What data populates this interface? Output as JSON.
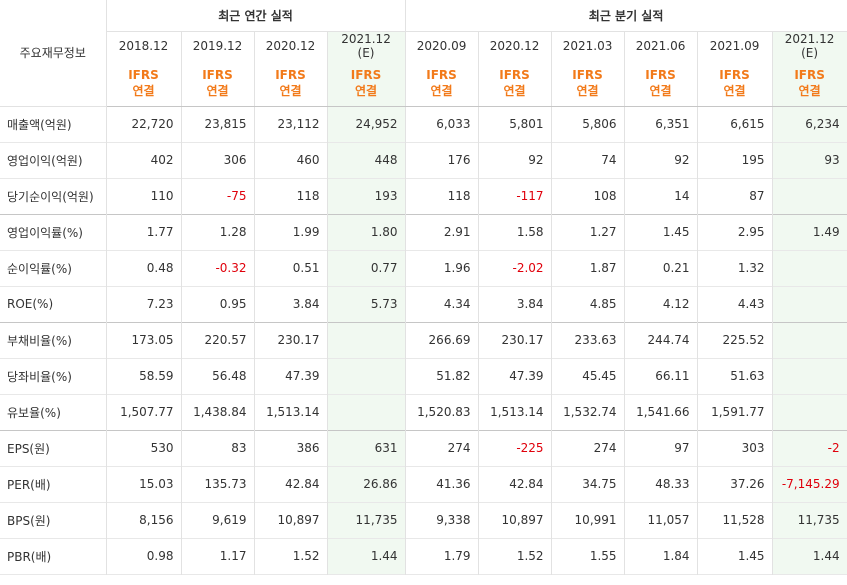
{
  "header": {
    "corner_label": "주요재무정보",
    "annual_group": "최근 연간 실적",
    "quarter_group": "최근 분기 실적",
    "periods": [
      {
        "label": "2018.12",
        "estimate": "",
        "basis": [
          "IFRS",
          "연결"
        ]
      },
      {
        "label": "2019.12",
        "estimate": "",
        "basis": [
          "IFRS",
          "연결"
        ]
      },
      {
        "label": "2020.12",
        "estimate": "",
        "basis": [
          "IFRS",
          "연결"
        ]
      },
      {
        "label": "2021.12",
        "estimate": "(E)",
        "basis": [
          "IFRS",
          "연결"
        ]
      },
      {
        "label": "2020.09",
        "estimate": "",
        "basis": [
          "IFRS",
          "연결"
        ]
      },
      {
        "label": "2020.12",
        "estimate": "",
        "basis": [
          "IFRS",
          "연결"
        ]
      },
      {
        "label": "2021.03",
        "estimate": "",
        "basis": [
          "IFRS",
          "연결"
        ]
      },
      {
        "label": "2021.06",
        "estimate": "",
        "basis": [
          "IFRS",
          "연결"
        ]
      },
      {
        "label": "2021.09",
        "estimate": "",
        "basis": [
          "IFRS",
          "연결"
        ]
      },
      {
        "label": "2021.12",
        "estimate": "(E)",
        "basis": [
          "IFRS",
          "연결"
        ]
      }
    ]
  },
  "rows": [
    {
      "label": "매출액(억원)",
      "values": [
        "22,720",
        "23,815",
        "23,112",
        "24,952",
        "6,033",
        "5,801",
        "5,806",
        "6,351",
        "6,615",
        "6,234"
      ]
    },
    {
      "label": "영업이익(억원)",
      "values": [
        "402",
        "306",
        "460",
        "448",
        "176",
        "92",
        "74",
        "92",
        "195",
        "93"
      ]
    },
    {
      "label": "당기순이익(억원)",
      "values": [
        "110",
        "-75",
        "118",
        "193",
        "118",
        "-117",
        "108",
        "14",
        "87",
        ""
      ]
    },
    {
      "label": "영업이익률(%)",
      "values": [
        "1.77",
        "1.28",
        "1.99",
        "1.80",
        "2.91",
        "1.58",
        "1.27",
        "1.45",
        "2.95",
        "1.49"
      ]
    },
    {
      "label": "순이익률(%)",
      "values": [
        "0.48",
        "-0.32",
        "0.51",
        "0.77",
        "1.96",
        "-2.02",
        "1.87",
        "0.21",
        "1.32",
        ""
      ]
    },
    {
      "label": "ROE(%)",
      "values": [
        "7.23",
        "0.95",
        "3.84",
        "5.73",
        "4.34",
        "3.84",
        "4.85",
        "4.12",
        "4.43",
        ""
      ]
    },
    {
      "label": "부채비율(%)",
      "values": [
        "173.05",
        "220.57",
        "230.17",
        "",
        "266.69",
        "230.17",
        "233.63",
        "244.74",
        "225.52",
        ""
      ]
    },
    {
      "label": "당좌비율(%)",
      "values": [
        "58.59",
        "56.48",
        "47.39",
        "",
        "51.82",
        "47.39",
        "45.45",
        "66.11",
        "51.63",
        ""
      ]
    },
    {
      "label": "유보율(%)",
      "values": [
        "1,507.77",
        "1,438.84",
        "1,513.14",
        "",
        "1,520.83",
        "1,513.14",
        "1,532.74",
        "1,541.66",
        "1,591.77",
        ""
      ]
    },
    {
      "label": "EPS(원)",
      "values": [
        "530",
        "83",
        "386",
        "631",
        "274",
        "-225",
        "274",
        "97",
        "303",
        "-2"
      ]
    },
    {
      "label": "PER(배)",
      "values": [
        "15.03",
        "135.73",
        "42.84",
        "26.86",
        "41.36",
        "42.84",
        "34.75",
        "48.33",
        "37.26",
        "-7,145.29"
      ]
    },
    {
      "label": "BPS(원)",
      "values": [
        "8,156",
        "9,619",
        "10,897",
        "11,735",
        "9,338",
        "10,897",
        "10,991",
        "11,057",
        "11,528",
        "11,735"
      ]
    },
    {
      "label": "PBR(배)",
      "values": [
        "0.98",
        "1.17",
        "1.52",
        "1.44",
        "1.79",
        "1.52",
        "1.55",
        "1.84",
        "1.45",
        "1.44"
      ]
    }
  ],
  "colors": {
    "ifrs_accent": "#f27a1a",
    "negative": "#e0000b",
    "estimate_bg": "#f1f9f1"
  }
}
